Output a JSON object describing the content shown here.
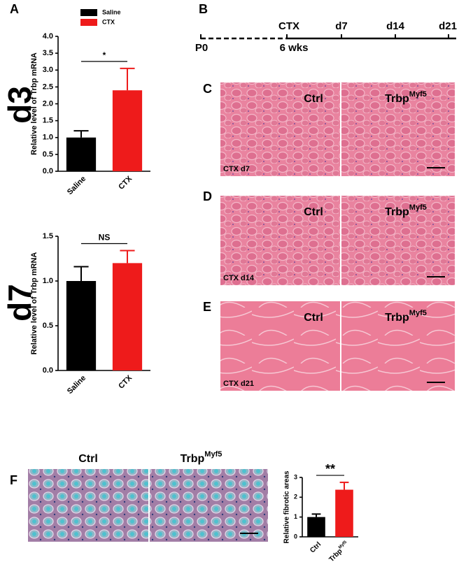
{
  "chart_data": [
    {
      "type": "bar",
      "side_label": "d3",
      "panel": "A",
      "ylabel": "Relative level of Trbp mRNA",
      "categories": [
        "Saline",
        "CTX"
      ],
      "values": [
        1.0,
        2.4
      ],
      "errors": [
        0.2,
        0.65
      ],
      "colors": [
        "#000000",
        "#ee1b1b"
      ],
      "legend": [
        {
          "name": "Saline",
          "color": "#000000"
        },
        {
          "name": "CTX",
          "color": "#ee1b1b"
        }
      ],
      "significance": "*",
      "ylim": [
        0,
        4
      ],
      "yticks": [
        {
          "value": 0,
          "label": "0.0"
        },
        0.5,
        {
          "value": 1,
          "label": "1.0"
        },
        1.5,
        {
          "value": 2,
          "label": "2.0"
        },
        2.5,
        {
          "value": 3,
          "label": "3.0"
        },
        3.5,
        {
          "value": 4,
          "label": "4.0"
        }
      ]
    },
    {
      "type": "bar",
      "side_label": "d7",
      "ylabel": "Relative level of Trbp mRNA",
      "categories": [
        "Saline",
        "CTX"
      ],
      "values": [
        1.0,
        1.2
      ],
      "errors": [
        0.16,
        0.14
      ],
      "colors": [
        "#000000",
        "#ee1b1b"
      ],
      "significance": "NS",
      "ylim": [
        0,
        1.5
      ],
      "yticks": [
        {
          "value": 0,
          "label": "0.0"
        },
        0.5,
        {
          "value": 1,
          "label": "1.0"
        },
        1.5
      ]
    },
    {
      "type": "bar",
      "ylabel": "Relative fibrotic areas",
      "categories": [
        "Ctrl",
        "Trbp"
      ],
      "superscripts": [
        null,
        "Myf5"
      ],
      "values": [
        1.0,
        2.38
      ],
      "errors": [
        0.15,
        0.37
      ],
      "colors": [
        "#000000",
        "#ee1b1b"
      ],
      "significance": "**",
      "ylim": [
        0,
        3
      ],
      "yticks": [
        0,
        1,
        2,
        3
      ]
    }
  ],
  "timeline": {
    "panel": "B",
    "above": [
      "CTX",
      "d7",
      "d14",
      "d21"
    ],
    "below": [
      "P0",
      "6 wks"
    ]
  },
  "images": [
    {
      "panel": "C",
      "left": "Ctrl",
      "right": "Trbp",
      "right_sup": "Myf5",
      "caption": "CTX d7"
    },
    {
      "panel": "D",
      "left": "Ctrl",
      "right": "Trbp",
      "right_sup": "Myf5",
      "caption": "CTX d14"
    },
    {
      "panel": "E",
      "left": "Ctrl",
      "right": "Trbp",
      "right_sup": "Myf5",
      "caption": "CTX d21"
    },
    {
      "panel": "F",
      "left": "Ctrl",
      "right": "Trbp",
      "right_sup": "Myf5"
    }
  ]
}
